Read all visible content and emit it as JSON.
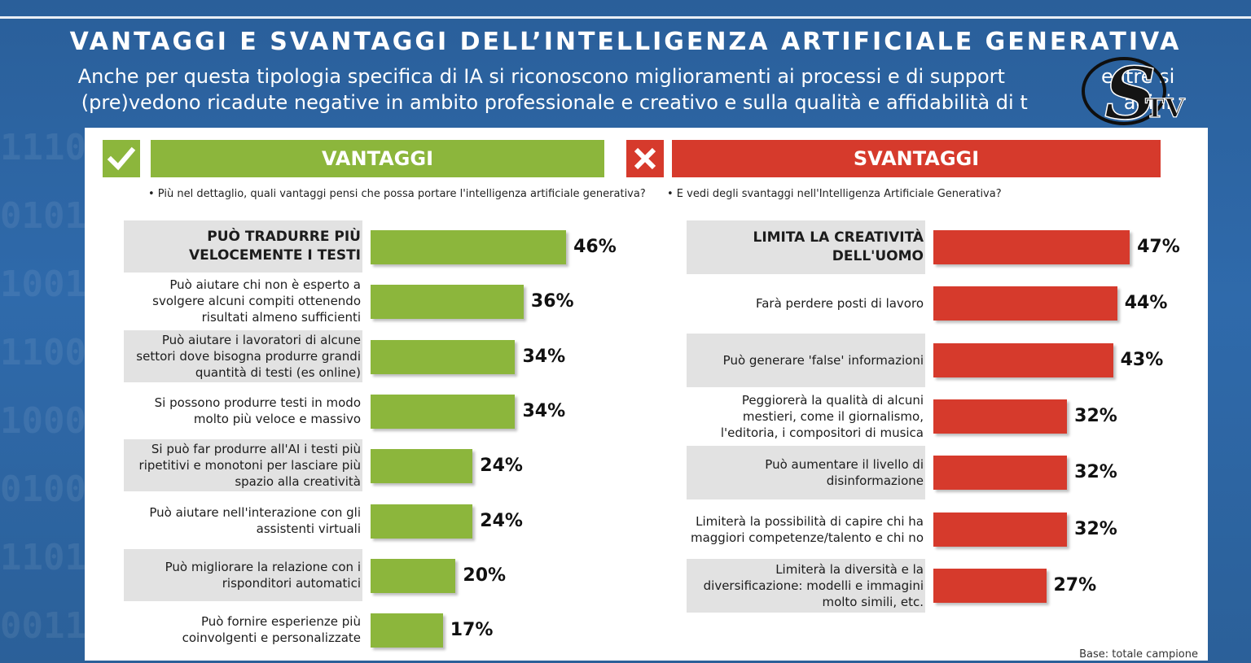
{
  "header": {
    "title": "VANTAGGI E SVANTAGGI DELL’INTELLIGENZA ARTIFICIALE GENERATIVA",
    "subtitle_line1": "Anche per questa tipologia specifica di IA si riconoscono miglioramenti ai processi e di support",
    "subtitle_line1_end": "entre si",
    "subtitle_line2": "(pre)vedono ricadute negative in ambito professionale e creativo e sulla qualità e affidabilità di t",
    "subtitle_line2_end": "agini"
  },
  "logo": {
    "letter": "S",
    "text": "TV"
  },
  "colors": {
    "green": "#8cb63c",
    "red": "#d63a2c",
    "background": "#2f6aab"
  },
  "icons": {
    "check": "check-icon",
    "cross": "cross-icon"
  },
  "chart_data": [
    {
      "type": "bar",
      "title": "VANTAGGI",
      "question": "• Più nel dettaglio, quali vantaggi pensi che possa portare l'intelligenza artificiale generativa?",
      "categories": [
        "PUÒ TRADURRE PIÙ VELOCEMENTE I TESTI",
        "Può aiutare chi non è esperto a svolgere alcuni compiti ottenendo risultati almeno sufficienti",
        "Può aiutare i lavoratori di alcune settori dove bisogna produrre grandi quantità di testi (es online)",
        "Si possono produrre testi in modo molto più veloce e massivo",
        "Si può far produrre all'AI i testi più ripetitivi e monotoni per lasciare più spazio alla creatività",
        "Può aiutare nell'interazione con gli assistenti virtuali",
        "Può migliorare la relazione con i risponditori automatici",
        "Può fornire esperienze più coinvolgenti e personalizzate"
      ],
      "values": [
        46,
        36,
        34,
        34,
        24,
        24,
        20,
        17
      ],
      "labels": [
        "46%",
        "36%",
        "34%",
        "34%",
        "24%",
        "24%",
        "20%",
        "17%"
      ],
      "unit": "%",
      "color": "#8cb63c"
    },
    {
      "type": "bar",
      "title": "SVANTAGGI",
      "question": "• E vedi degli svantaggi nell'Intelligenza Artificiale Generativa?",
      "categories": [
        "LIMITA LA CREATIVITÀ DELL'UOMO",
        "Farà perdere posti di lavoro",
        "Può generare 'false' informazioni",
        "Peggiorerà la qualità di alcuni mestieri, come il giornalismo, l'editoria, i compositori di musica",
        "Può aumentare il livello di disinformazione",
        "Limiterà la possibilità di capire chi ha maggiori competenze/talento e chi no",
        "Limiterà la diversità e la diversificazione: modelli e immagini molto simili, etc."
      ],
      "values": [
        47,
        44,
        43,
        32,
        32,
        32,
        27
      ],
      "labels": [
        "47%",
        "44%",
        "43%",
        "32%",
        "32%",
        "32%",
        "27%"
      ],
      "unit": "%",
      "color": "#d63a2c"
    }
  ],
  "base_note": "Base: totale campione"
}
